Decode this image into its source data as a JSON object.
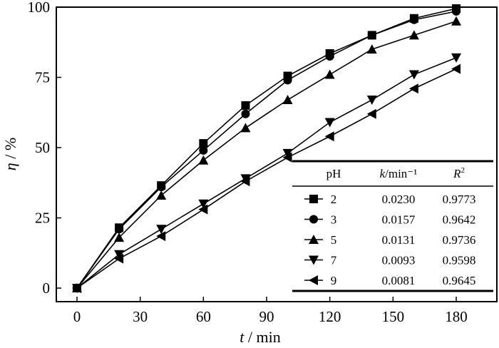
{
  "chart_data": {
    "type": "line",
    "title": "",
    "xlabel": "t / min",
    "xlabel_var": "t",
    "xlabel_unit": " / min",
    "ylabel": "η / %",
    "ylabel_var": "η",
    "ylabel_unit": " / %",
    "xlim": [
      -10,
      195
    ],
    "ylim": [
      -5,
      100
    ],
    "xticks": [
      0,
      30,
      60,
      90,
      120,
      150,
      180
    ],
    "yticks": [
      0,
      25,
      50,
      75,
      100
    ],
    "grid": false,
    "x": [
      0,
      20,
      40,
      60,
      80,
      100,
      120,
      140,
      160,
      180
    ],
    "series": [
      {
        "name": "2",
        "marker": "square",
        "values": [
          0,
          21.5,
          36.5,
          51.5,
          65,
          75.5,
          83.5,
          90,
          96,
          99.5
        ]
      },
      {
        "name": "3",
        "marker": "circle",
        "values": [
          0,
          21,
          36,
          49,
          62,
          74,
          82.5,
          90,
          95.5,
          98.5
        ]
      },
      {
        "name": "5",
        "marker": "triangle-up",
        "values": [
          0,
          18,
          33,
          45.5,
          57,
          67,
          76,
          85,
          90,
          95
        ]
      },
      {
        "name": "7",
        "marker": "triangle-down",
        "values": [
          0,
          12,
          21,
          30,
          39,
          48,
          59,
          67,
          76,
          82
        ]
      },
      {
        "name": "9",
        "marker": "triangle-left",
        "values": [
          0,
          10.5,
          18.5,
          28,
          38,
          46.5,
          54,
          62,
          71,
          78
        ]
      }
    ],
    "legend": {
      "placement": "bottom-right",
      "headers": [
        "pH",
        "k/min⁻¹",
        "R²"
      ],
      "header_k_var": "k",
      "header_k_unit": "/min⁻¹",
      "header_r_var": "R",
      "header_r_sup": "2",
      "rows": [
        {
          "pH": "2",
          "k": "0.0230",
          "R2": "0.9773"
        },
        {
          "pH": "3",
          "k": "0.0157",
          "R2": "0.9642"
        },
        {
          "pH": "5",
          "k": "0.0131",
          "R2": "0.9736"
        },
        {
          "pH": "7",
          "k": "0.0093",
          "R2": "0.9598"
        },
        {
          "pH": "9",
          "k": "0.0081",
          "R2": "0.9645"
        }
      ]
    }
  }
}
